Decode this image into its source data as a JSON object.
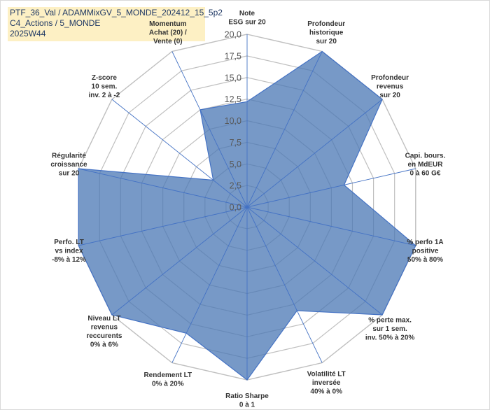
{
  "title_lines": [
    "PTF_36_Val / ADAMMixGV_5_MONDE_202412_15_5p2",
    "C4_Actions / 5_MONDE",
    "2025W44"
  ],
  "colors": {
    "fill": "#4a77b4",
    "fill_opacity": "0.75",
    "stroke": "#4472c4",
    "grid": "#bfbfbf",
    "spoke": "#4472c4",
    "title_bg": "#fdf0c4"
  },
  "chart_data": {
    "type": "radar",
    "title": "",
    "scale": {
      "min": 0,
      "max": 20,
      "step": 2.5
    },
    "tick_labels": [
      "0,0",
      "2,5",
      "5,0",
      "7,5",
      "10,0",
      "12,5",
      "15,0",
      "17,5",
      "20,0"
    ],
    "axes": [
      {
        "label": [
          "Note",
          "ESG sur 20"
        ],
        "value": 12.2
      },
      {
        "label": [
          "Profondeur",
          "historique",
          "sur 20"
        ],
        "value": 20
      },
      {
        "label": [
          "Profondeur",
          "revenus",
          "sur 20"
        ],
        "value": 20
      },
      {
        "label": [
          "Capi. bours.",
          "en MdEUR",
          "0 à 60 G€"
        ],
        "value": 11.5
      },
      {
        "label": [
          "% perfo 1A",
          "positive",
          "50% à 80%"
        ],
        "value": 20
      },
      {
        "label": [
          "% perte max.",
          "sur 1 sem.",
          "inv. 50% à 20%"
        ],
        "value": 20
      },
      {
        "label": [
          "Volatilité LT",
          "inversée",
          "40% à 0%"
        ],
        "value": 13.3
      },
      {
        "label": [
          "Ratio Sharpe",
          "0 à 1"
        ],
        "value": 20
      },
      {
        "label": [
          "Rendement LT",
          "0% à 20%"
        ],
        "value": 16.2
      },
      {
        "label": [
          "Niveau LT",
          "revenus",
          "reccurents",
          "0% à 6%"
        ],
        "value": 20
      },
      {
        "label": [
          "Perfo. LT",
          "vs index",
          "-8% à 12%"
        ],
        "value": 20
      },
      {
        "label": [
          "Régularité",
          "croissance",
          "sur 20"
        ],
        "value": 20
      },
      {
        "label": [
          "Z-score",
          "10 sem.",
          "inv. 2 à -2"
        ],
        "value": 5
      },
      {
        "label": [
          "Momentum",
          "Achat (20) /",
          "Vente (0)"
        ],
        "value": 12.5
      }
    ]
  }
}
